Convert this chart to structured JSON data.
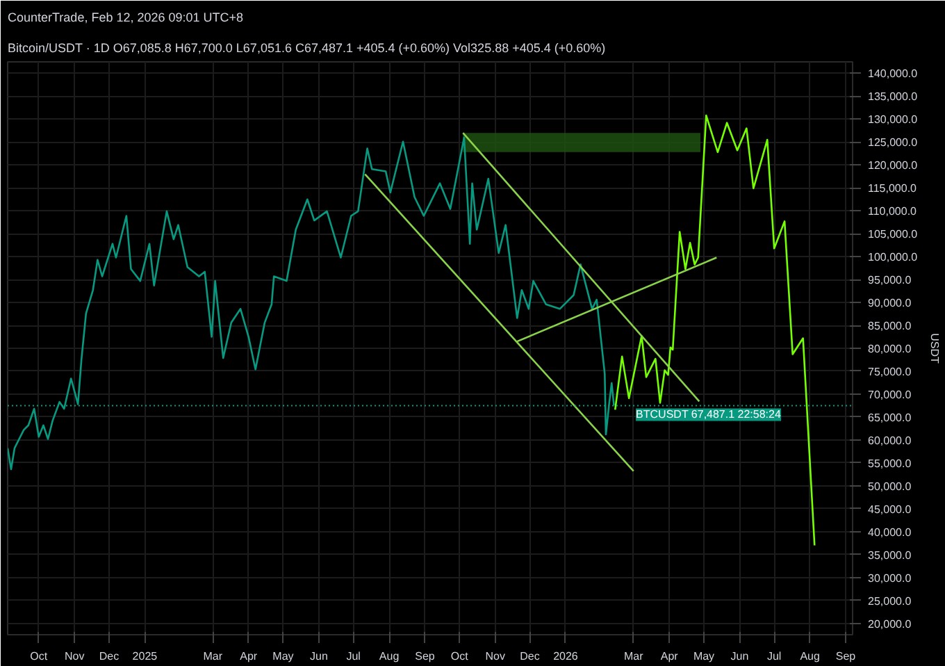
{
  "chart_data": {
    "type": "line",
    "title": "Bitcoin/USDT · 1D",
    "subtitle": "O67,085.8 H67,700.0 L67,051.6 C67,487.1 +405.4 (+0.60%) Vol325.88 +405.4 (+0.60%)",
    "ylabel": "USDT",
    "annotations": [
      "CounterTrade, Feb 12, 2026 09:01 UTC+8"
    ],
    "xlim": [
      "2024-09-04",
      "2026-09-07"
    ],
    "xticks": [
      {
        "value": "2024-10-01",
        "label": "Oct"
      },
      {
        "value": "2024-11-01",
        "label": "Nov"
      },
      {
        "value": "2024-12-01",
        "label": "Dec"
      },
      {
        "value": "2025-01-01",
        "label": "2025"
      },
      {
        "value": "2025-03-01",
        "label": "Mar"
      },
      {
        "value": "2025-04-01",
        "label": "Apr"
      },
      {
        "value": "2025-05-01",
        "label": "May"
      },
      {
        "value": "2025-06-01",
        "label": "Jun"
      },
      {
        "value": "2025-07-01",
        "label": "Jul"
      },
      {
        "value": "2025-08-01",
        "label": "Aug"
      },
      {
        "value": "2025-09-01",
        "label": "Sep"
      },
      {
        "value": "2025-10-01",
        "label": "Oct"
      },
      {
        "value": "2025-11-01",
        "label": "Nov"
      },
      {
        "value": "2025-12-01",
        "label": "Dec"
      },
      {
        "value": "2026-01-01",
        "label": "2026"
      },
      {
        "value": "2026-03-01",
        "label": "Mar"
      },
      {
        "value": "2026-04-01",
        "label": "Apr"
      },
      {
        "value": "2026-05-01",
        "label": "May"
      },
      {
        "value": "2026-06-01",
        "label": "Jun"
      },
      {
        "value": "2026-07-01",
        "label": "Jul"
      },
      {
        "value": "2026-08-01",
        "label": "Aug"
      },
      {
        "value": "2026-09-01",
        "label": "Sep"
      }
    ],
    "ylim": [
      17500,
      142500
    ],
    "yticks": [
      {
        "value": 20000,
        "label": "20,000.0"
      },
      {
        "value": 25000,
        "label": "25,000.0"
      },
      {
        "value": 30000,
        "label": "30,000.0"
      },
      {
        "value": 35000,
        "label": "35,000.0"
      },
      {
        "value": 40000,
        "label": "40,000.0"
      },
      {
        "value": 45000,
        "label": "45,000.0"
      },
      {
        "value": 50000,
        "label": "50,000.0"
      },
      {
        "value": 55000,
        "label": "55,000.0"
      },
      {
        "value": 60000,
        "label": "60,000.0"
      },
      {
        "value": 65000,
        "label": "65,000.0"
      },
      {
        "value": 70000,
        "label": "70,000.0"
      },
      {
        "value": 75000,
        "label": "75,000.0"
      },
      {
        "value": 80000,
        "label": "80,000.0"
      },
      {
        "value": 85000,
        "label": "85,000.0"
      },
      {
        "value": 90000,
        "label": "90,000.0"
      },
      {
        "value": 95000,
        "label": "95,000.0"
      },
      {
        "value": 100000,
        "label": "100,000.0"
      },
      {
        "value": 105000,
        "label": "105,000.0"
      },
      {
        "value": 110000,
        "label": "110,000.0"
      },
      {
        "value": 115000,
        "label": "115,000.0"
      },
      {
        "value": 120000,
        "label": "120,000.0"
      },
      {
        "value": 125000,
        "label": "125,000.0"
      },
      {
        "value": 130000,
        "label": "130,000.0"
      },
      {
        "value": 135000,
        "label": "135,000.0"
      },
      {
        "value": 140000,
        "label": "140,000.0"
      }
    ],
    "grid": true,
    "ref_lines": [
      {
        "axis": "y",
        "value": 67487.1,
        "label": "BTCUSDT 67,487.1 22:58:24",
        "color": "#089981",
        "line_style": "dotted"
      }
    ],
    "series": [
      {
        "type": "line",
        "color": "#1e5010",
        "x": [
          "2025-10-04",
          "2026-04-28"
        ],
        "values": [
          null,
          null
        ],
        "lower": [
          122800,
          122800
        ],
        "upper": [
          127000,
          127000
        ]
      },
      {
        "color": "#089981",
        "x": [
          "2024-09-04",
          "2024-09-07",
          "2024-09-10",
          "2024-09-14",
          "2024-09-18",
          "2024-09-22",
          "2024-09-27",
          "2024-10-01",
          "2024-10-05",
          "2024-10-09",
          "2024-10-13",
          "2024-10-19",
          "2024-10-23",
          "2024-10-29",
          "2024-11-04",
          "2024-11-07",
          "2024-11-11",
          "2024-11-17",
          "2024-11-21",
          "2024-11-25",
          "2024-12-04",
          "2024-12-07",
          "2024-12-16",
          "2024-12-20",
          "2024-12-28",
          "2025-01-05",
          "2025-01-09",
          "2025-01-20",
          "2025-01-26",
          "2025-01-30",
          "2025-02-07",
          "2025-02-17",
          "2025-02-22",
          "2025-02-28",
          "2025-03-03",
          "2025-03-10",
          "2025-03-17",
          "2025-03-25",
          "2025-04-01",
          "2025-04-07",
          "2025-04-15",
          "2025-04-21",
          "2025-04-23",
          "2025-05-04",
          "2025-05-12",
          "2025-05-22",
          "2025-05-28",
          "2025-06-08",
          "2025-06-20",
          "2025-06-29",
          "2025-07-05",
          "2025-07-13",
          "2025-07-17",
          "2025-07-29",
          "2025-08-02",
          "2025-08-13",
          "2025-08-23",
          "2025-08-31",
          "2025-09-14",
          "2025-09-23",
          "2025-10-05",
          "2025-10-10",
          "2025-10-12",
          "2025-10-16",
          "2025-10-26",
          "2025-11-04",
          "2025-11-10",
          "2025-11-20",
          "2025-11-24",
          "2025-11-30",
          "2025-12-04",
          "2025-12-15",
          "2025-12-27",
          "2026-01-08",
          "2026-01-14",
          "2026-01-24",
          "2026-01-28",
          "2026-02-04",
          "2026-02-05",
          "2026-02-08",
          "2026-02-10",
          "2026-02-12"
        ],
        "values": [
          58200,
          53600,
          58200,
          60200,
          62200,
          63200,
          66800,
          60700,
          63200,
          60200,
          64200,
          68300,
          66800,
          73400,
          67800,
          77500,
          87600,
          92700,
          99300,
          95700,
          102800,
          99800,
          108900,
          97300,
          94700,
          102800,
          93700,
          109900,
          103800,
          106900,
          97700,
          95700,
          96700,
          82500,
          94700,
          77900,
          85600,
          88600,
          82500,
          75400,
          85600,
          89600,
          95700,
          94700,
          105900,
          112500,
          107900,
          109900,
          99800,
          108900,
          109900,
          123600,
          119100,
          118600,
          114000,
          125100,
          113000,
          108900,
          116000,
          110400,
          126000,
          102800,
          116000,
          105900,
          117000,
          100800,
          106900,
          86600,
          92700,
          88600,
          94700,
          89600,
          88600,
          91600,
          98300,
          88600,
          90600,
          74400,
          61200,
          68300,
          72400,
          67500
        ]
      },
      {
        "type": "line",
        "color": "#76ff03",
        "x": [
          "2026-02-13",
          "2026-02-19",
          "2026-02-25",
          "2026-03-08",
          "2026-03-12",
          "2026-03-20",
          "2026-03-24",
          "2026-03-28",
          "2026-03-31",
          "2026-04-02",
          "2026-04-04",
          "2026-04-10",
          "2026-04-15",
          "2026-04-19",
          "2026-04-23",
          "2026-04-26",
          "2026-05-03",
          "2026-05-13",
          "2026-05-21",
          "2026-05-30",
          "2026-06-07",
          "2026-06-13",
          "2026-06-25",
          "2026-07-01",
          "2026-07-10",
          "2026-07-17",
          "2026-07-26",
          "2026-08-05"
        ],
        "values": [
          66600,
          78200,
          69100,
          82700,
          73700,
          77700,
          68100,
          75200,
          74200,
          80200,
          79700,
          105400,
          97300,
          103000,
          98300,
          99800,
          130800,
          122800,
          129200,
          123200,
          128000,
          114900,
          125500,
          101800,
          107700,
          78700,
          82200,
          37000
        ]
      },
      {
        "type": "line",
        "color": "#8bd34a",
        "x": [
          "2025-07-11",
          "2026-03-01"
        ],
        "values": [
          118000,
          53200
        ]
      },
      {
        "type": "line",
        "color": "#8bd34a",
        "x": [
          "2025-10-04",
          "2026-04-27"
        ],
        "values": [
          127000,
          68400
        ]
      },
      {
        "type": "line",
        "color": "#8bd34a",
        "x": [
          "2025-11-20",
          "2026-05-12"
        ],
        "values": [
          81500,
          99800
        ]
      }
    ]
  }
}
